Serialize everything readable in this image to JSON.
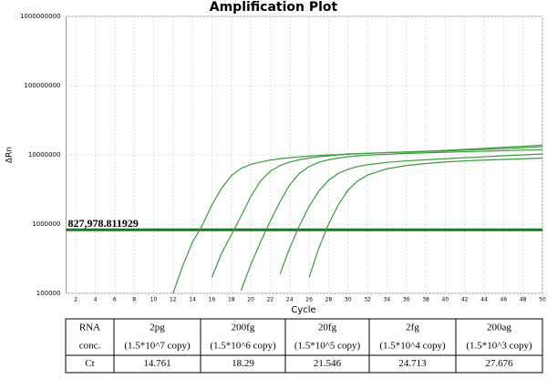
{
  "chart_data": {
    "type": "line",
    "title": "Amplification Plot",
    "x_label": "Cycle",
    "y_label": "ΔRn",
    "log_scale_y": true,
    "grid": true,
    "xlim": [
      1,
      50
    ],
    "xticks": [
      2,
      4,
      6,
      8,
      10,
      12,
      14,
      16,
      18,
      20,
      22,
      24,
      26,
      28,
      30,
      32,
      34,
      36,
      38,
      40,
      42,
      44,
      46,
      48,
      50
    ],
    "ylim": [
      100000,
      1000000000
    ],
    "yticks": [
      100000,
      1000000,
      10000000,
      100000000,
      1000000000
    ],
    "threshold": {
      "value": 827978.811929,
      "label": "827,978.811929",
      "color": "#1a7a1a",
      "label_color": "#ff0000"
    },
    "x": [
      11,
      12,
      13,
      14,
      15,
      16,
      17,
      18,
      19,
      20,
      21,
      22,
      23,
      24,
      25,
      26,
      27,
      28,
      29,
      30,
      31,
      32,
      34,
      36,
      38,
      40,
      42,
      44,
      46,
      48,
      50
    ],
    "series": [
      {
        "color": "#3c9a3c",
        "values": [
          null,
          100000,
          250000,
          550000,
          950000,
          1900000,
          3300000,
          5000000,
          6400000,
          7300000,
          7900000,
          8400000,
          8800000,
          9100000,
          9400000,
          9600000,
          9800000,
          10000000,
          10100000,
          10300000,
          10400000,
          10500000,
          10800000,
          11000000,
          11300000,
          11600000,
          12000000,
          12400000,
          12900000,
          13300000,
          13800000
        ]
      },
      {
        "color": "#3c9a3c",
        "values": [
          null,
          null,
          null,
          null,
          null,
          170000,
          380000,
          700000,
          1300000,
          2500000,
          4200000,
          5800000,
          7000000,
          7900000,
          8500000,
          9000000,
          9400000,
          9700000,
          10000000,
          10200000,
          10400000,
          10500000,
          10800000,
          11000000,
          11200000,
          11400000,
          11700000,
          12000000,
          12300000,
          12700000,
          13100000
        ]
      },
      {
        "color": "#3c9a3c",
        "values": [
          null,
          null,
          null,
          null,
          null,
          null,
          null,
          null,
          110000,
          260000,
          550000,
          1100000,
          2100000,
          3700000,
          5400000,
          6800000,
          7800000,
          8500000,
          9000000,
          9400000,
          9700000,
          9900000,
          10200000,
          10500000,
          10700000,
          10900000,
          11100000,
          11300000,
          11500000,
          11700000,
          11900000
        ]
      },
      {
        "color": "#3c9a3c",
        "values": [
          null,
          null,
          null,
          null,
          null,
          null,
          null,
          null,
          null,
          null,
          null,
          null,
          190000,
          450000,
          950000,
          1800000,
          3000000,
          4300000,
          5400000,
          6200000,
          6800000,
          7200000,
          7800000,
          8200000,
          8500000,
          8800000,
          9100000,
          9400000,
          9700000,
          10000000,
          10300000
        ]
      },
      {
        "color": "#3c9a3c",
        "values": [
          null,
          null,
          null,
          null,
          null,
          null,
          null,
          null,
          null,
          null,
          null,
          null,
          null,
          null,
          null,
          170000,
          450000,
          1000000,
          1900000,
          3100000,
          4200000,
          5100000,
          6300000,
          7000000,
          7500000,
          7900000,
          8200000,
          8400000,
          8600000,
          8800000,
          9000000
        ]
      }
    ]
  },
  "table": {
    "header": [
      [
        "RNA",
        "conc."
      ],
      [
        "2pg",
        "(1.5*10^7 copy)"
      ],
      [
        "200fg",
        "(1.5*10^6 copy)"
      ],
      [
        "20fg",
        "(1.5*10^5 copy)"
      ],
      [
        "2fg",
        "(1.5*10^4 copy)"
      ],
      [
        "200ag",
        "(1.5*10^3 copy)"
      ]
    ],
    "row": [
      "Ct",
      "14.761",
      "18.29",
      "21.546",
      "24.713",
      "27.676"
    ]
  }
}
